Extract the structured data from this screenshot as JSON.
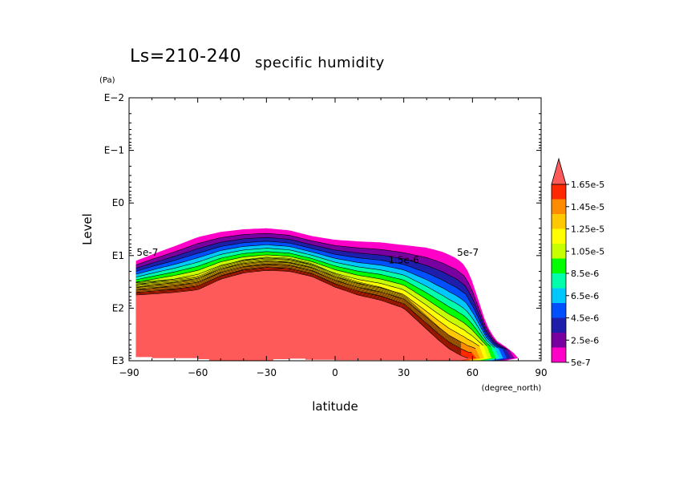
{
  "chart_data": {
    "type": "contour",
    "title_main": "Ls=210-240",
    "title_sub": "specific humidity",
    "xlabel": "latitude",
    "ylabel": "Level",
    "x_unit": "(degree_north)",
    "y_unit": "(Pa)",
    "xlim": [
      -90,
      90
    ],
    "ylim_log10": [
      -2,
      3
    ],
    "x_ticks": [
      -90,
      -60,
      -30,
      0,
      30,
      60,
      90
    ],
    "x_tick_labels": [
      "−90",
      "−60",
      "−30",
      "0",
      "30",
      "60",
      "90"
    ],
    "y_ticks_log10": [
      -2,
      -1,
      0,
      1,
      2,
      3
    ],
    "y_tick_labels": [
      "E−2",
      "E−1",
      "E0",
      "E1",
      "E2",
      "E3"
    ],
    "y_scale": "log",
    "colorbar": {
      "levels": [
        "5e-7",
        "2.5e-6",
        "4.5e-6",
        "6.5e-6",
        "8.5e-6",
        "1.05e-5",
        "1.25e-5",
        "1.45e-5",
        "1.65e-5"
      ],
      "colors": [
        "#ff00c8",
        "#7800a0",
        "#1e1eaa",
        "#0050ff",
        "#00c8ff",
        "#00ffaa",
        "#00ff00",
        "#c8ff00",
        "#ffff00",
        "#ffc800",
        "#ff8c00",
        "#ff2800",
        "#ff5a5a"
      ],
      "extend": "max"
    },
    "contour_labels": [
      {
        "text": "5e-7",
        "lat": -82,
        "log10p": 1.0
      },
      {
        "text": "5e-7",
        "lat": 58,
        "log10p": 1.0
      },
      {
        "text": "1.5e-6",
        "lat": 30,
        "log10p": 1.15
      }
    ],
    "fields": {
      "bands_count": 13
    }
  }
}
